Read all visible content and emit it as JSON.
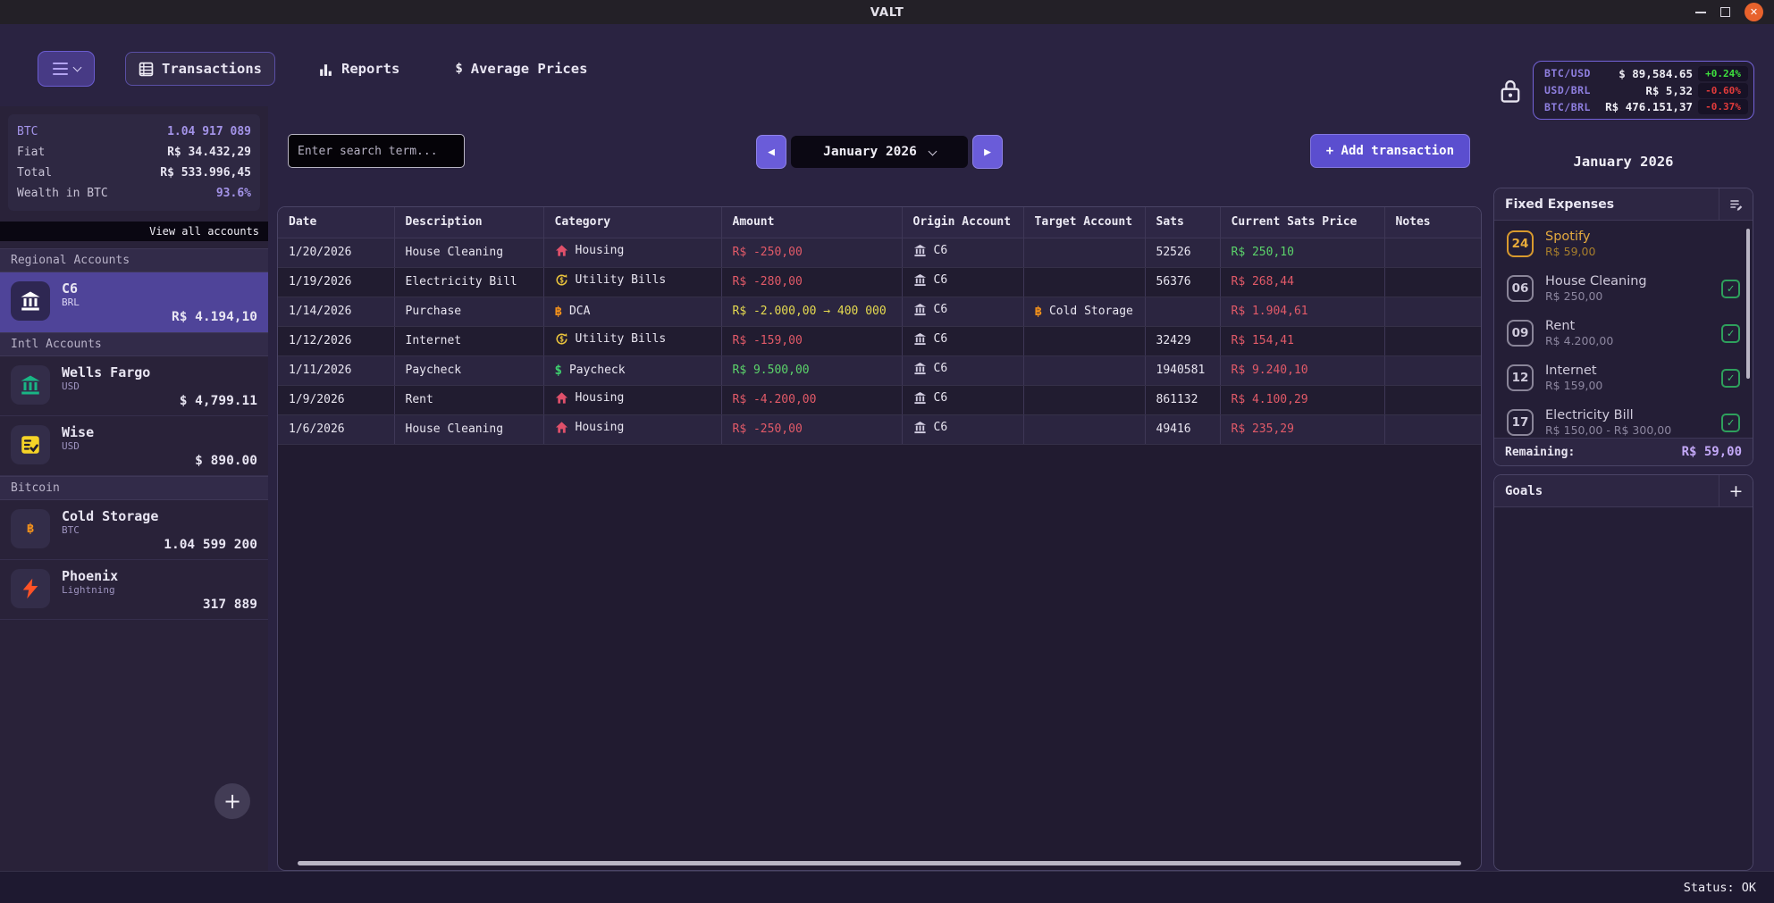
{
  "window": {
    "title": "VALT"
  },
  "nav": {
    "tabs": [
      {
        "label": "Transactions",
        "icon": "table-icon",
        "active": true
      },
      {
        "label": "Reports",
        "icon": "bar-chart-icon",
        "active": false
      },
      {
        "label": "Average Prices",
        "icon": "dollar-icon",
        "active": false
      }
    ]
  },
  "ticker": {
    "rows": [
      {
        "pair": "BTC/USD",
        "value": "$ 89,584.65",
        "change": "+0.24%",
        "direction": "up"
      },
      {
        "pair": "USD/BRL",
        "value": "R$ 5,32",
        "change": "-0.60%",
        "direction": "down"
      },
      {
        "pair": "BTC/BRL",
        "value": "R$ 476.151,37",
        "change": "-0.37%",
        "direction": "down"
      }
    ]
  },
  "sidebar": {
    "stats": [
      {
        "label": "BTC",
        "value": "1.04 917 089",
        "style": "purple"
      },
      {
        "label": "Fiat",
        "value": "R$ 34.432,29",
        "style": "white"
      },
      {
        "label": "Total",
        "value": "R$ 533.996,45",
        "style": "white"
      },
      {
        "label": "Wealth in BTC",
        "value": "93.6%",
        "style": "purple-val"
      }
    ],
    "view_all": "View all accounts",
    "sections": [
      {
        "title": "Regional Accounts",
        "accounts": [
          {
            "name": "C6",
            "sub": "BRL",
            "value": "R$ 4.194,10",
            "icon": "bank-icon",
            "icon_color": "#ffffff",
            "selected": true
          }
        ]
      },
      {
        "title": "Intl Accounts",
        "accounts": [
          {
            "name": "Wells Fargo",
            "sub": "USD",
            "value": "$ 4,799.11",
            "icon": "bank-icon",
            "icon_color": "#19b585",
            "selected": false
          },
          {
            "name": "Wise",
            "sub": "USD",
            "value": "$ 890.00",
            "icon": "checklist-icon",
            "icon_color": "#f5d327",
            "selected": false
          }
        ]
      },
      {
        "title": "Bitcoin",
        "accounts": [
          {
            "name": "Cold Storage",
            "sub": "BTC",
            "value": "1.04 599 200",
            "icon": "bitcoin-icon",
            "icon_color": "#f7931a",
            "selected": false
          },
          {
            "name": "Phoenix",
            "sub": "Lightning",
            "value": "317 889",
            "icon": "lightning-icon",
            "icon_color": "#ff5226",
            "selected": false
          }
        ]
      }
    ]
  },
  "toolbar": {
    "search_placeholder": "Enter search term...",
    "month": "January 2026",
    "add_label": "+ Add transaction"
  },
  "table": {
    "columns": [
      "Date",
      "Description",
      "Category",
      "Amount",
      "Origin Account",
      "Target Account",
      "Sats",
      "Current Sats Price",
      "Notes"
    ],
    "rows": [
      {
        "date": "1/20/2026",
        "description": "House Cleaning",
        "category": {
          "label": "Housing",
          "icon": "house-icon",
          "color": "#e0506a"
        },
        "amount": {
          "text": "R$ -250,00",
          "color": "red"
        },
        "origin": {
          "label": "C6",
          "icon": "bank-icon"
        },
        "target": null,
        "sats": "52526",
        "price": {
          "text": "R$ 250,10",
          "color": "green"
        },
        "notes": ""
      },
      {
        "date": "1/19/2026",
        "description": "Electricity Bill",
        "category": {
          "label": "Utility Bills",
          "icon": "exchange-icon",
          "color": "#e8c23c"
        },
        "amount": {
          "text": "R$ -280,00",
          "color": "red"
        },
        "origin": {
          "label": "C6",
          "icon": "bank-icon"
        },
        "target": null,
        "sats": "56376",
        "price": {
          "text": "R$ 268,44",
          "color": "red"
        },
        "notes": ""
      },
      {
        "date": "1/14/2026",
        "description": "Purchase",
        "category": {
          "label": "DCA",
          "icon": "bitcoin-icon",
          "color": "#f7931a"
        },
        "amount": {
          "text": "R$ -2.000,00 → 400 000",
          "color": "yellow"
        },
        "origin": {
          "label": "C6",
          "icon": "bank-icon"
        },
        "target": {
          "label": "Cold Storage",
          "icon": "bitcoin-icon",
          "color": "#f7931a"
        },
        "sats": "",
        "price": {
          "text": "R$ 1.904,61",
          "color": "red"
        },
        "notes": ""
      },
      {
        "date": "1/12/2026",
        "description": "Internet",
        "category": {
          "label": "Utility Bills",
          "icon": "exchange-icon",
          "color": "#e8c23c"
        },
        "amount": {
          "text": "R$ -159,00",
          "color": "red"
        },
        "origin": {
          "label": "C6",
          "icon": "bank-icon"
        },
        "target": null,
        "sats": "32429",
        "price": {
          "text": "R$ 154,41",
          "color": "red"
        },
        "notes": ""
      },
      {
        "date": "1/11/2026",
        "description": "Paycheck",
        "category": {
          "label": "Paycheck",
          "icon": "dollar-icon",
          "color": "#3ecf6e"
        },
        "amount": {
          "text": "R$ 9.500,00",
          "color": "green"
        },
        "origin": {
          "label": "C6",
          "icon": "bank-icon"
        },
        "target": null,
        "sats": "1940581",
        "price": {
          "text": "R$ 9.240,10",
          "color": "red"
        },
        "notes": ""
      },
      {
        "date": "1/9/2026",
        "description": "Rent",
        "category": {
          "label": "Housing",
          "icon": "house-icon",
          "color": "#e0506a"
        },
        "amount": {
          "text": "R$ -4.200,00",
          "color": "red"
        },
        "origin": {
          "label": "C6",
          "icon": "bank-icon"
        },
        "target": null,
        "sats": "861132",
        "price": {
          "text": "R$ 4.100,29",
          "color": "red"
        },
        "notes": ""
      },
      {
        "date": "1/6/2026",
        "description": "House Cleaning",
        "category": {
          "label": "Housing",
          "icon": "house-icon",
          "color": "#e0506a"
        },
        "amount": {
          "text": "R$ -250,00",
          "color": "red"
        },
        "origin": {
          "label": "C6",
          "icon": "bank-icon"
        },
        "target": null,
        "sats": "49416",
        "price": {
          "text": "R$ 235,29",
          "color": "red"
        },
        "notes": ""
      }
    ]
  },
  "expenses_panel": {
    "month_title": "January 2026",
    "header": "Fixed Expenses",
    "items": [
      {
        "day": "24",
        "name": "Spotify",
        "amount": "R$ 59,00",
        "status": "pending"
      },
      {
        "day": "06",
        "name": "House Cleaning",
        "amount": "R$ 250,00",
        "status": "paid"
      },
      {
        "day": "09",
        "name": "Rent",
        "amount": "R$ 4.200,00",
        "status": "paid"
      },
      {
        "day": "12",
        "name": "Internet",
        "amount": "R$ 159,00",
        "status": "paid"
      },
      {
        "day": "17",
        "name": "Electricity Bill",
        "amount": "R$ 150,00 - R$ 300,00",
        "status": "paid"
      }
    ],
    "remaining_label": "Remaining:",
    "remaining_value": "R$ 59,00",
    "goals_header": "Goals"
  },
  "statusbar": {
    "text": "Status: OK"
  }
}
